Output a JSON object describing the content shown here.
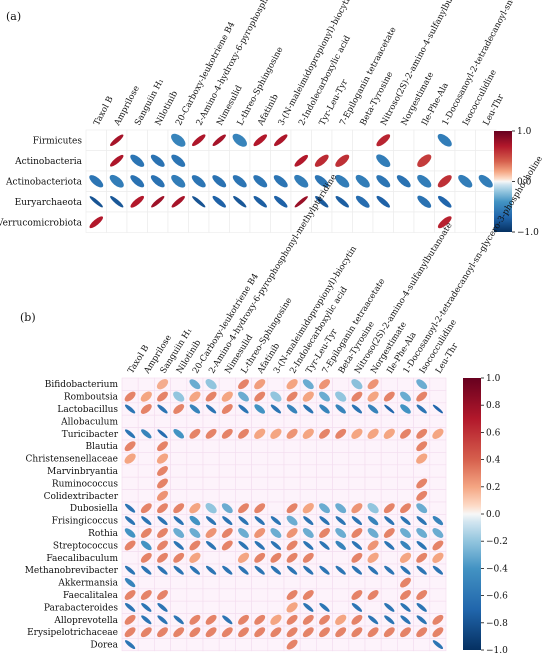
{
  "chart_data": [
    {
      "type": "heatmap",
      "panel_label": "(a)",
      "columns": [
        "Taxol B",
        "Amprilose",
        "Sanguiin H₁",
        "Nilotinib",
        "20-Carboxy-leukotriene B4",
        "2-Amino-4-hydroxy-6-pyrophosphonyl-methylpteridine",
        "Nimesulid",
        "L-threo-Sphingosine",
        "Afatinib",
        "3-(N-maleimidopropionyl)-biocytin",
        "2-Indolecarboxylic acid",
        "Tyr-Leu-Tyr",
        "7-Epiloganin tetraacetate",
        "Beta-Tyrosine",
        "Nitroso(2S)-2-amino-4-sulfanylbutanoate",
        "Norgestimate",
        "Ile-Phe-Ala",
        "1-Docosanoyl-2-tetradecanoyl-sn-glycero-3-phosphocholine",
        "Isococculidine",
        "Leu-Thr"
      ],
      "rows": [
        "Firmicutes",
        "Actinobacteria",
        "Actinobacteriota",
        "Euryarchaeota",
        "Verrucomicrobiota"
      ],
      "values": [
        [
          0,
          0.75,
          0,
          0,
          -0.5,
          0.72,
          0.75,
          -0.5,
          0.7,
          0.72,
          0,
          0,
          0,
          0,
          0.65,
          0,
          0,
          -0.55,
          0,
          0
        ],
        [
          0,
          0.72,
          -0.6,
          -0.62,
          -0.6,
          0,
          0,
          0,
          0,
          0,
          0.7,
          0.62,
          0.6,
          0,
          -0.55,
          0,
          0.55,
          0,
          0,
          0
        ],
        [
          -0.6,
          -0.55,
          -0.62,
          -0.62,
          -0.55,
          -0.6,
          -0.62,
          -0.6,
          -0.6,
          -0.6,
          -0.55,
          -0.6,
          -0.55,
          -0.55,
          -0.6,
          -0.62,
          -0.55,
          0.6,
          -0.55,
          -0.55
        ],
        [
          -0.8,
          -0.78,
          0.7,
          0.78,
          0.75,
          -0.8,
          -0.72,
          -0.78,
          -0.74,
          -0.72,
          0.8,
          -0.76,
          -0.74,
          -0.65,
          -0.72,
          0,
          -0.62,
          -0.7,
          0,
          0
        ],
        [
          0.7,
          0,
          0,
          0,
          0,
          0,
          0,
          0,
          0,
          0,
          0,
          0,
          0,
          0,
          0,
          0,
          0,
          0.66,
          0,
          0
        ]
      ],
      "colorbar": {
        "ticks": [
          "1.0",
          "0.0",
          "−1.0"
        ],
        "min": -1,
        "max": 1
      }
    },
    {
      "type": "heatmap",
      "panel_label": "(b)",
      "columns": [
        "Taxol B",
        "Amprilose",
        "Sanguiin H₁",
        "Nilotinib",
        "20-Carboxy-leukotriene B4",
        "2-Amino-4-hydroxy-6-pyrophosphonyl-methylpteridine",
        "Nimesulid",
        "L-threo-Sphingosine",
        "Afatinib",
        "3-(N-maleimidopropionyl)-biocytin",
        "2-Indolecarboxylic acid",
        "Tyr-Leu-Tyr",
        "7-Epiloganin tetraacetate",
        "Beta-Tyrosine",
        "Nitroso(2S)-2-amino-4-sulfanylbutanoate",
        "Norgestimate",
        "Ile-Phe-Ala",
        "1-Docosanoyl-2-tetradecanoyl-sn-glycero-3-phosphocholine",
        "Isococculidine",
        "Leu-Thr"
      ],
      "rows": [
        "Bifidobacterium",
        "Romboutsia",
        "Lactobacillus",
        "Allobaculum",
        "Turicibacter",
        "Blautia",
        "Christensenellaceae",
        "Marvinbryantia",
        "Ruminococcus",
        "Colidextribacter",
        "Dubosiella",
        "Frisingicoccus",
        "Rothia",
        "Streptococcus",
        "Faecalibaculum",
        "Methanobrevibacter",
        "Akkermansia",
        "Faecalitalea",
        "Parabacteroides",
        "Alloprevotella",
        "Erysipelotrichaceae",
        "Dorea"
      ],
      "values": [
        [
          0,
          0,
          0.18,
          0,
          -0.3,
          -0.2,
          0,
          0.3,
          0.22,
          0,
          0.2,
          -0.3,
          0.25,
          0,
          -0.22,
          0.25,
          0,
          0,
          -0.3,
          0
        ],
        [
          0.3,
          0.2,
          0.3,
          -0.2,
          0.2,
          0.3,
          0.2,
          -0.3,
          0.3,
          -0.2,
          0.3,
          0.2,
          -0.3,
          -0.2,
          0.3,
          0.2,
          0.3,
          -0.3,
          0.3,
          0
        ],
        [
          -0.6,
          0.3,
          -0.6,
          0.3,
          -0.5,
          -0.6,
          0.3,
          -0.6,
          -0.4,
          -0.6,
          -0.5,
          -0.6,
          -0.5,
          -0.5,
          -0.6,
          -0.5,
          -0.7,
          -0.4,
          -0.6,
          -0.7
        ],
        [
          0,
          0,
          0,
          0,
          0,
          0,
          0,
          0,
          0,
          0,
          0,
          0,
          0,
          0,
          0,
          0,
          0,
          0,
          0,
          0
        ],
        [
          -0.6,
          -0.5,
          -0.65,
          -0.4,
          0.3,
          0.3,
          0.3,
          0.3,
          0.2,
          0.2,
          0.25,
          0.2,
          0.3,
          0.3,
          0.2,
          0.2,
          0.2,
          0.3,
          0.3,
          0.2
        ],
        [
          0.3,
          0,
          0.3,
          0,
          0,
          0,
          0,
          0,
          0,
          0,
          0,
          0,
          0,
          0,
          0,
          0,
          0,
          0,
          0.3,
          0
        ],
        [
          0.2,
          0,
          0.2,
          0,
          0,
          0,
          0,
          0,
          0,
          0,
          0,
          0,
          0,
          0,
          0,
          0,
          0,
          0,
          0.2,
          0
        ],
        [
          0,
          0,
          0.3,
          0,
          0,
          0,
          0,
          0,
          0,
          0,
          0,
          0,
          0,
          0,
          0,
          0,
          0,
          0,
          0,
          0
        ],
        [
          0,
          0,
          0.3,
          0,
          0,
          0,
          0,
          0,
          0,
          0,
          0,
          0,
          0,
          0,
          0,
          0,
          0,
          0,
          0.3,
          0
        ],
        [
          0,
          0,
          0.25,
          0,
          0,
          0,
          0,
          0,
          0,
          0,
          0,
          0,
          0,
          0,
          0,
          0,
          0,
          0,
          0.3,
          0
        ],
        [
          -0.6,
          0.3,
          0.3,
          0.3,
          0.2,
          -0.2,
          -0.3,
          0.3,
          0.3,
          0,
          0.3,
          0.2,
          -0.3,
          -0.3,
          0.25,
          -0.2,
          0.3,
          0.3,
          -0.3,
          0
        ],
        [
          -0.6,
          -0.6,
          -0.6,
          -0.6,
          -0.4,
          -0.6,
          -0.6,
          -0.6,
          -0.6,
          -0.6,
          -0.3,
          -0.6,
          -0.6,
          -0.6,
          -0.6,
          -0.5,
          -0.6,
          -0.6,
          -0.6,
          -0.5
        ],
        [
          -0.4,
          0.3,
          0.3,
          -0.3,
          -0.3,
          0.25,
          0.3,
          -0.3,
          0.25,
          -0.3,
          0.25,
          -0.3,
          0.3,
          -0.3,
          0.3,
          -0.3,
          0.3,
          -0.3,
          -0.3,
          -0.3
        ],
        [
          0.3,
          -0.4,
          0.3,
          -0.6,
          0.3,
          -0.6,
          0.3,
          -0.6,
          -0.6,
          -0.6,
          0.3,
          -0.6,
          -0.6,
          -0.5,
          -0.6,
          0.25,
          -0.6,
          -0.5,
          -0.6,
          0.3
        ],
        [
          0,
          0.3,
          0.3,
          0.3,
          0.2,
          0,
          0,
          0.2,
          0.3,
          0.3,
          0.3,
          0.3,
          0,
          0,
          0.3,
          0.2,
          0,
          0.2,
          0.3,
          0.2
        ],
        [
          -0.6,
          -0.6,
          -0.6,
          -0.6,
          -0.6,
          -0.6,
          -0.6,
          -0.6,
          -0.6,
          -0.6,
          -0.6,
          -0.6,
          -0.6,
          -0.6,
          -0.6,
          -0.6,
          -0.6,
          -0.6,
          -0.6,
          -0.6
        ],
        [
          -0.5,
          0,
          0,
          0,
          0,
          0,
          0,
          0,
          0,
          0,
          0,
          0,
          0,
          0,
          0,
          0,
          0,
          0.3,
          0,
          0
        ],
        [
          0.3,
          0.3,
          0.3,
          0,
          0,
          0,
          0,
          0,
          0,
          0,
          0.3,
          0.3,
          0,
          0,
          0.3,
          0.3,
          0,
          0.3,
          0.3,
          0
        ],
        [
          -0.6,
          -0.6,
          -0.6,
          0,
          0,
          0,
          0,
          0,
          0,
          0,
          0.2,
          -0.6,
          -0.6,
          0,
          -0.6,
          0,
          -0.6,
          -0.6,
          -0.6,
          0
        ],
        [
          0.3,
          -0.6,
          -0.6,
          -0.6,
          0.3,
          0.3,
          -0.6,
          0.3,
          0.3,
          0.2,
          0.3,
          0.3,
          0.3,
          0.2,
          0.3,
          -0.6,
          -0.6,
          -0.6,
          -0.6,
          0.3
        ],
        [
          0.3,
          0.3,
          0.3,
          0.3,
          0.3,
          0.3,
          0.3,
          0.3,
          0.3,
          0.3,
          0.3,
          0.3,
          0.3,
          0.3,
          0.3,
          0.3,
          0.3,
          0.3,
          0.3,
          0.3
        ],
        [
          -0.6,
          0,
          0,
          0,
          0,
          0,
          0,
          0,
          0,
          0,
          0.3,
          0,
          0,
          0,
          0,
          0,
          0,
          0,
          0,
          -0.6
        ]
      ],
      "colorbar": {
        "ticks": [
          "1.0",
          "0.8",
          "0.6",
          "0.4",
          "0.2",
          "0.0",
          "−0.2",
          "−0.4",
          "−0.6",
          "−0.8",
          "−1.0"
        ],
        "min": -1,
        "max": 1
      }
    }
  ],
  "colors": {
    "positive": "#b2182b",
    "neutral": "#f7f7f7",
    "negative": "#2166ac"
  }
}
